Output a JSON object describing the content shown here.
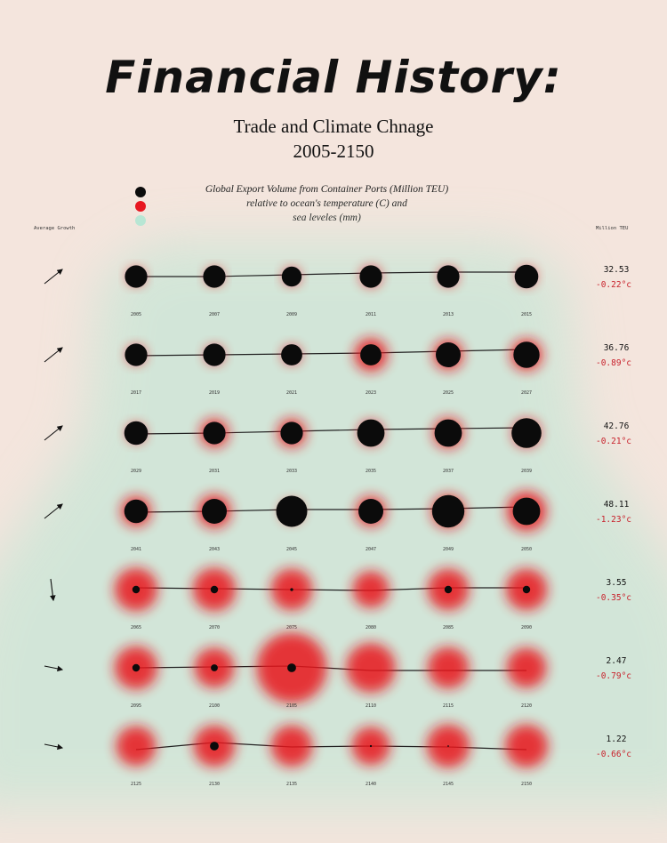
{
  "title": "Financial History:",
  "subtitle": "Trade and Climate Chnage",
  "year_range": "2005-2150",
  "legend": {
    "line1": "Global Export Volume from Container Ports (Million TEU)",
    "line2": "relative to ocean's temperature (C) and",
    "line3": "sea leveles (mm)",
    "colors": {
      "export": "#0b0b0b",
      "temperature": "#e8141e",
      "sea_level": "#b8e6d4"
    }
  },
  "left_column_label": "Average Growth",
  "right_column_label": "Million TEU",
  "chart_data": {
    "type": "scatter",
    "rows": [
      {
        "years": [
          "2005",
          "2007",
          "2009",
          "2011",
          "2013",
          "2015"
        ],
        "export": [
          0.9,
          0.9,
          0.8,
          0.9,
          0.9,
          0.95
        ],
        "temperature": [
          0.05,
          0.05,
          0.05,
          0.15,
          0.1,
          0.1
        ],
        "sea_level": [
          0.2,
          0.2,
          0.2,
          0.2,
          0.2,
          0.2
        ],
        "line": [
          0.5,
          0.5,
          0.6,
          0.7,
          0.75,
          0.75
        ],
        "growth": "up",
        "value": "32.53",
        "temp": "-0.22°c"
      },
      {
        "years": [
          "2017",
          "2019",
          "2021",
          "2023",
          "2025",
          "2027"
        ],
        "export": [
          0.9,
          0.9,
          0.85,
          0.85,
          1.0,
          1.05
        ],
        "temperature": [
          0.1,
          0.1,
          0.1,
          0.6,
          0.5,
          0.55
        ],
        "sea_level": [
          0.25,
          0.25,
          0.25,
          0.25,
          0.25,
          0.25
        ],
        "line": [
          0.45,
          0.5,
          0.55,
          0.6,
          0.7,
          0.8
        ],
        "growth": "up",
        "value": "36.76",
        "temp": "-0.89°c"
      },
      {
        "years": [
          "2029",
          "2031",
          "2033",
          "2035",
          "2037",
          "2039"
        ],
        "export": [
          0.95,
          0.9,
          0.9,
          1.1,
          1.1,
          1.2
        ],
        "temperature": [
          0.1,
          0.45,
          0.45,
          0.3,
          0.5,
          0.4
        ],
        "sea_level": [
          0.3,
          0.3,
          0.3,
          0.3,
          0.3,
          0.3
        ],
        "line": [
          0.45,
          0.5,
          0.6,
          0.7,
          0.75,
          0.8
        ],
        "growth": "up",
        "value": "42.76",
        "temp": "-0.21°c"
      },
      {
        "years": [
          "2041",
          "2043",
          "2045",
          "2047",
          "2049",
          "2050"
        ],
        "export": [
          0.95,
          1.0,
          1.25,
          1.0,
          1.3,
          1.1
        ],
        "temperature": [
          0.5,
          0.6,
          0.2,
          0.5,
          0.6,
          0.8
        ],
        "sea_level": [
          0.6,
          0.6,
          0.6,
          0.6,
          0.6,
          0.6
        ],
        "line": [
          0.45,
          0.5,
          0.6,
          0.6,
          0.65,
          0.75
        ],
        "growth": "up",
        "value": "48.11",
        "temp": "-1.23°c"
      },
      {
        "years": [
          "2065",
          "2070",
          "2075",
          "2080",
          "2085",
          "2090"
        ],
        "export": [
          0.3,
          0.3,
          0.12,
          0,
          0.3,
          0.3
        ],
        "temperature": [
          0.9,
          0.9,
          0.85,
          0.7,
          0.85,
          0.85
        ],
        "sea_level": [
          0.9,
          0.9,
          0.9,
          0.9,
          0.9,
          0.9
        ],
        "line": [
          0.6,
          0.55,
          0.5,
          0.45,
          0.6,
          0.6
        ],
        "growth": "down",
        "value": "3.55",
        "temp": "-0.35°c"
      },
      {
        "years": [
          "2095",
          "2100",
          "2105",
          "2110",
          "2115",
          "2120"
        ],
        "export": [
          0.3,
          0.28,
          0.35,
          0,
          0,
          0
        ],
        "temperature": [
          0.9,
          0.8,
          1.75,
          1.1,
          0.85,
          0.8
        ],
        "sea_level": [
          1.0,
          1.0,
          1.0,
          1.0,
          1.0,
          1.0
        ],
        "line": [
          0.5,
          0.55,
          0.6,
          0.35,
          0.35,
          0.35
        ],
        "growth": "flat",
        "value": "2.47",
        "temp": "-0.79°c"
      },
      {
        "years": [
          "2125",
          "2130",
          "2135",
          "2140",
          "2145",
          "2150"
        ],
        "export": [
          0,
          0.35,
          0,
          0.08,
          0.06,
          0
        ],
        "temperature": [
          0.8,
          0.85,
          0.85,
          0.75,
          0.9,
          0.9
        ],
        "sea_level": [
          1.0,
          1.0,
          1.0,
          1.0,
          1.0,
          1.0
        ],
        "line": [
          0.3,
          0.7,
          0.45,
          0.5,
          0.45,
          0.3
        ],
        "growth": "flat",
        "value": "1.22",
        "temp": "-0.66°c"
      }
    ]
  }
}
